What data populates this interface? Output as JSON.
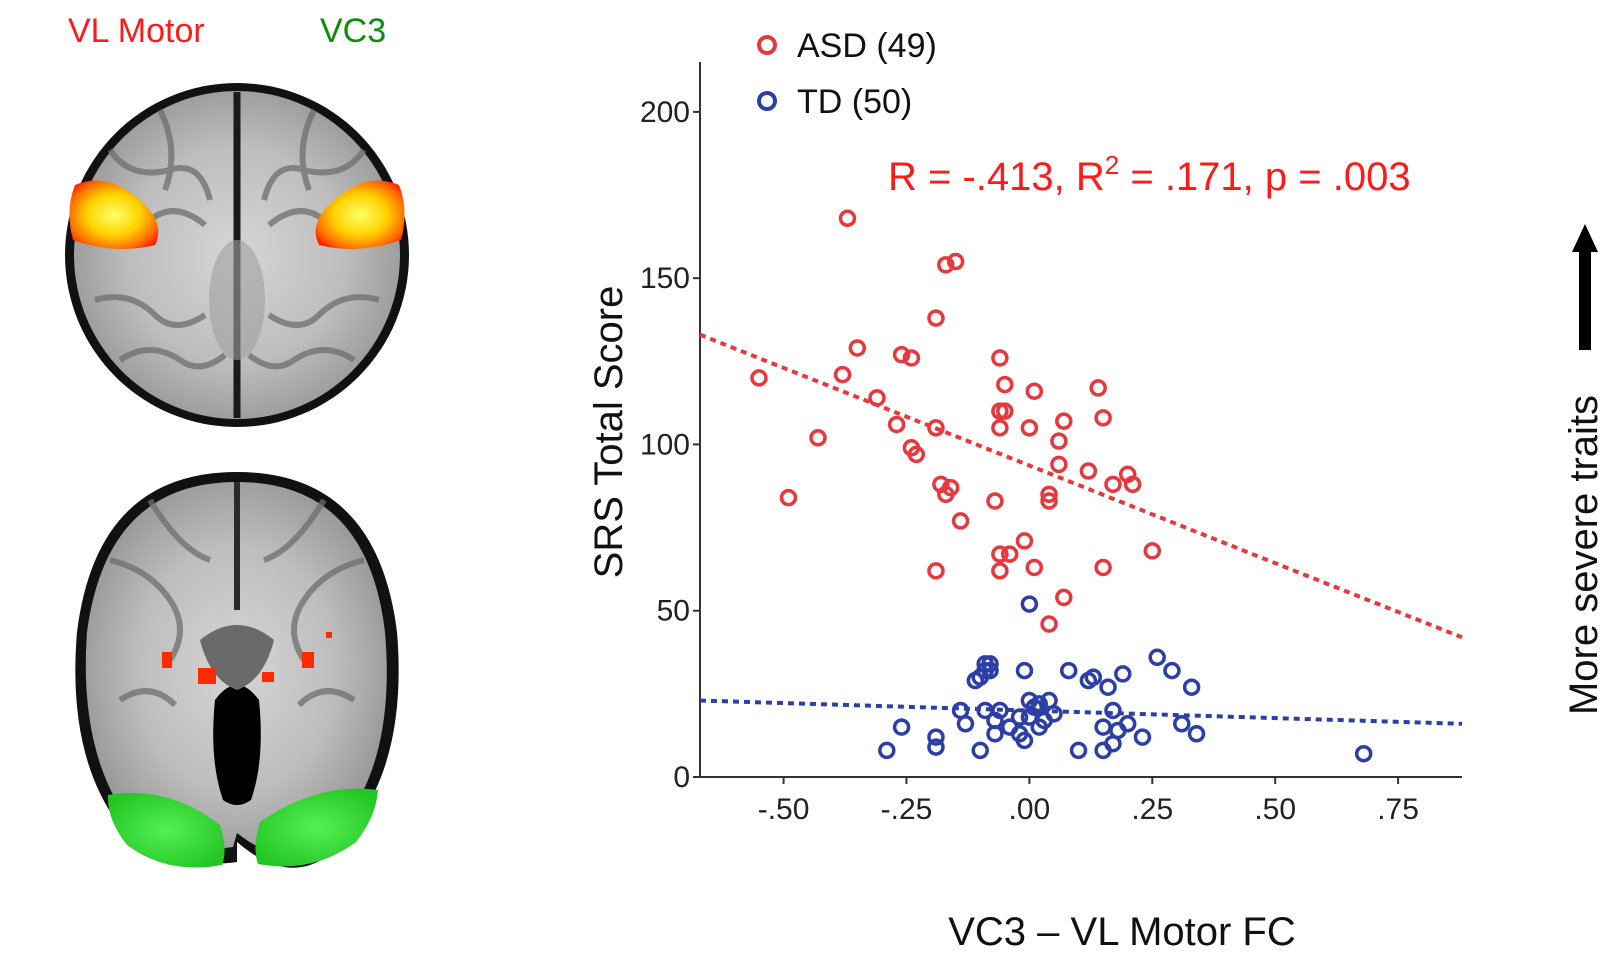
{
  "brain_labels": {
    "vl_motor": {
      "text": "VL Motor",
      "color": "#ff1a1a"
    },
    "vc3": {
      "text": "VC3",
      "color": "#0a8f0a"
    }
  },
  "colors": {
    "asd": "#e8383d",
    "td": "#2b3fa6",
    "stat": "#ff1a1a"
  },
  "chart_data": {
    "type": "scatter",
    "title": "",
    "xlabel": "VC3 – VL Motor FC",
    "ylabel": "SRS Total Score",
    "xlim": [
      -0.67,
      0.88
    ],
    "ylim": [
      0,
      215
    ],
    "xticks": [
      -0.5,
      -0.25,
      0.0,
      0.25,
      0.5,
      0.75
    ],
    "xtick_labels": [
      "-.50",
      "-.25",
      ".00",
      ".25",
      ".50",
      ".75"
    ],
    "yticks": [
      0,
      50,
      100,
      150,
      200
    ],
    "ytick_labels": [
      "0",
      "50",
      "100",
      "150",
      "200"
    ],
    "legend": {
      "position": "top-left"
    },
    "annotation": {
      "prefix": "R = -.413, R",
      "sup": "2",
      "suffix": " = .171, p = .003"
    },
    "side_label": "More severe traits",
    "series": [
      {
        "name": "ASD (49)",
        "color": "#e8383d",
        "points": [
          [
            -0.37,
            168
          ],
          [
            -0.17,
            154
          ],
          [
            -0.15,
            155
          ],
          [
            -0.19,
            138
          ],
          [
            -0.35,
            129
          ],
          [
            -0.26,
            127
          ],
          [
            -0.24,
            126
          ],
          [
            -0.38,
            121
          ],
          [
            -0.55,
            120
          ],
          [
            -0.31,
            114
          ],
          [
            -0.27,
            106
          ],
          [
            -0.19,
            105
          ],
          [
            -0.43,
            102
          ],
          [
            -0.23,
            97
          ],
          [
            -0.24,
            99
          ],
          [
            -0.18,
            88
          ],
          [
            -0.16,
            87
          ],
          [
            -0.17,
            85
          ],
          [
            -0.49,
            84
          ],
          [
            -0.14,
            77
          ],
          [
            -0.19,
            62
          ],
          [
            -0.06,
            126
          ],
          [
            -0.05,
            118
          ],
          [
            -0.06,
            110
          ],
          [
            -0.05,
            110
          ],
          [
            -0.06,
            105
          ],
          [
            -0.07,
            83
          ],
          [
            -0.06,
            67
          ],
          [
            -0.04,
            67
          ],
          [
            -0.06,
            62
          ],
          [
            0.01,
            116
          ],
          [
            0.0,
            105
          ],
          [
            0.07,
            107
          ],
          [
            0.06,
            101
          ],
          [
            0.06,
            94
          ],
          [
            0.04,
            85
          ],
          [
            0.04,
            83
          ],
          [
            -0.01,
            71
          ],
          [
            0.01,
            63
          ],
          [
            0.07,
            54
          ],
          [
            0.04,
            46
          ],
          [
            0.14,
            117
          ],
          [
            0.15,
            108
          ],
          [
            0.12,
            92
          ],
          [
            0.2,
            91
          ],
          [
            0.17,
            88
          ],
          [
            0.21,
            88
          ],
          [
            0.15,
            63
          ],
          [
            0.25,
            68
          ]
        ],
        "trend": [
          [
            -0.67,
            133
          ],
          [
            0.88,
            42
          ]
        ]
      },
      {
        "name": "TD (50)",
        "color": "#2b3fa6",
        "points": [
          [
            0.0,
            52
          ],
          [
            -0.09,
            34
          ],
          [
            -0.08,
            34
          ],
          [
            -0.08,
            32
          ],
          [
            -0.09,
            32
          ],
          [
            -0.01,
            32
          ],
          [
            -0.1,
            30
          ],
          [
            -0.11,
            29
          ],
          [
            -0.14,
            20
          ],
          [
            -0.06,
            20
          ],
          [
            -0.09,
            20
          ],
          [
            -0.07,
            17
          ],
          [
            0.0,
            23
          ],
          [
            0.02,
            22
          ],
          [
            0.01,
            21
          ],
          [
            0.04,
            23
          ],
          [
            0.05,
            19
          ],
          [
            0.0,
            18
          ],
          [
            -0.02,
            18
          ],
          [
            0.03,
            17
          ],
          [
            0.02,
            15
          ],
          [
            -0.04,
            15
          ],
          [
            -0.07,
            13
          ],
          [
            -0.02,
            13
          ],
          [
            -0.01,
            11
          ],
          [
            -0.13,
            16
          ],
          [
            -0.26,
            15
          ],
          [
            -0.19,
            12
          ],
          [
            -0.19,
            9
          ],
          [
            -0.29,
            8
          ],
          [
            -0.1,
            8
          ],
          [
            0.08,
            32
          ],
          [
            0.13,
            30
          ],
          [
            0.12,
            29
          ],
          [
            0.19,
            31
          ],
          [
            0.16,
            27
          ],
          [
            0.26,
            36
          ],
          [
            0.29,
            32
          ],
          [
            0.33,
            27
          ],
          [
            0.17,
            20
          ],
          [
            0.15,
            15
          ],
          [
            0.18,
            14
          ],
          [
            0.2,
            16
          ],
          [
            0.23,
            12
          ],
          [
            0.31,
            16
          ],
          [
            0.34,
            13
          ],
          [
            0.17,
            10
          ],
          [
            0.15,
            8
          ],
          [
            0.1,
            8
          ],
          [
            0.68,
            7
          ]
        ],
        "trend": [
          [
            -0.67,
            23
          ],
          [
            0.88,
            16
          ]
        ]
      }
    ]
  }
}
